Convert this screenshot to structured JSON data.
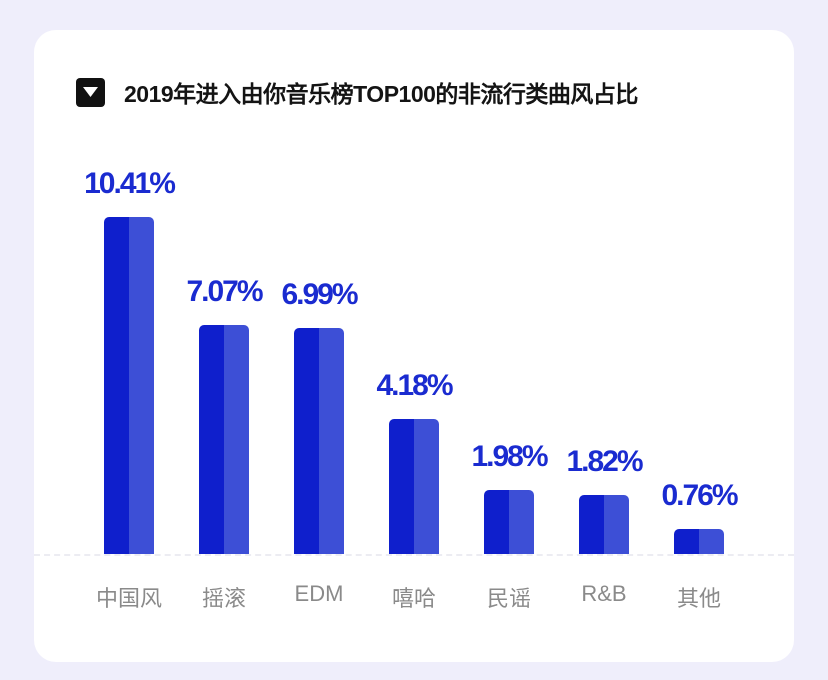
{
  "card": {
    "title": "2019年进入由你音乐榜TOP100的非流行类曲风占比",
    "title_icon": "caret-down-icon"
  },
  "colors": {
    "background": "#efeefb",
    "card": "#ffffff",
    "bar_dark": "#0f1fcc",
    "bar_light": "#3d4fd6",
    "value_label": "#1a2bd0",
    "category_label": "#8a8a8a"
  },
  "chart_data": {
    "type": "bar",
    "title": "2019年进入由你音乐榜TOP100的非流行类曲风占比",
    "xlabel": "",
    "ylabel": "",
    "categories": [
      "中国风",
      "摇滚",
      "EDM",
      "嘻哈",
      "民谣",
      "R&B",
      "其他"
    ],
    "values": [
      10.41,
      7.07,
      6.99,
      4.18,
      1.98,
      1.82,
      0.76
    ],
    "value_labels": [
      "10.41%",
      "7.07%",
      "6.99%",
      "4.18%",
      "1.98%",
      "1.82%",
      "0.76%"
    ],
    "unit": "%",
    "ylim": [
      0,
      10.41
    ],
    "grid": false,
    "legend": null
  },
  "bars": [
    {
      "category": "中国风",
      "label": "10.41%",
      "value": 10.41
    },
    {
      "category": "摇滚",
      "label": "7.07%",
      "value": 7.07
    },
    {
      "category": "EDM",
      "label": "6.99%",
      "value": 6.99
    },
    {
      "category": "嘻哈",
      "label": "4.18%",
      "value": 4.18
    },
    {
      "category": "民谣",
      "label": "1.98%",
      "value": 1.98
    },
    {
      "category": "R&B",
      "label": "1.82%",
      "value": 1.82
    },
    {
      "category": "其他",
      "label": "0.76%",
      "value": 0.76
    }
  ]
}
